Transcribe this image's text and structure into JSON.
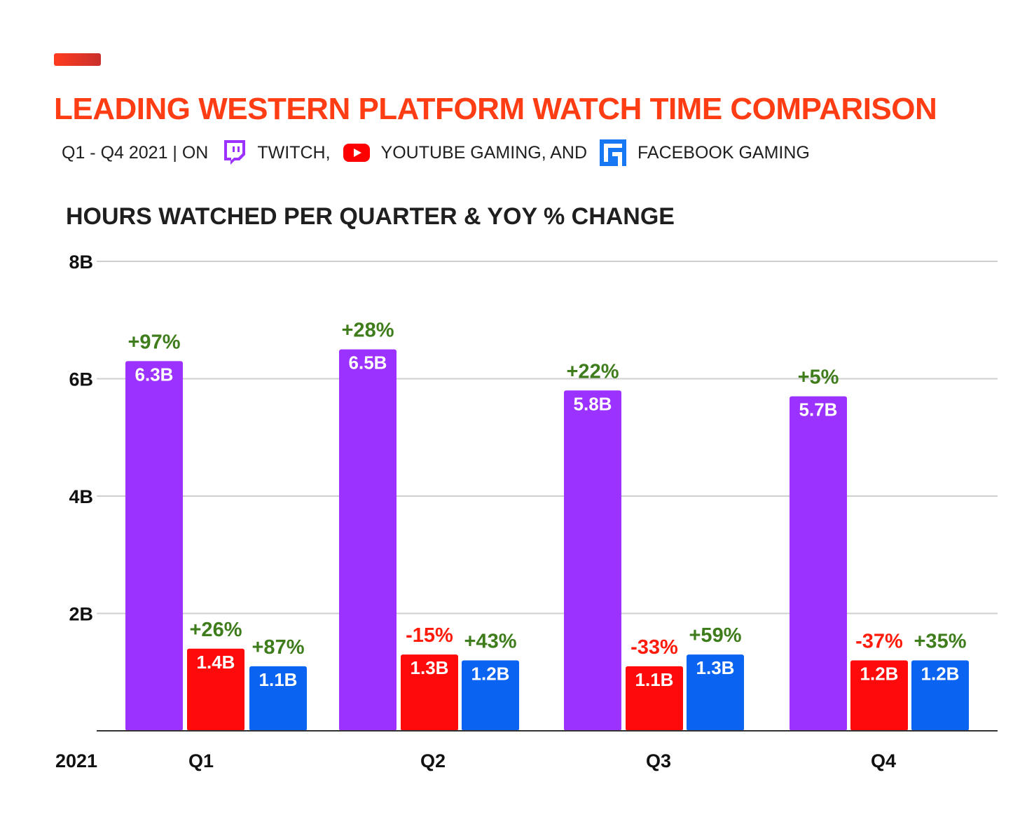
{
  "header": {
    "title": "LEADING WESTERN PLATFORM WATCH TIME COMPARISON",
    "subtitle_prefix": "Q1  - Q4 2021 | ON",
    "twitch_label": "TWITCH,",
    "youtube_label": "YOUTUBE GAMING, AND",
    "facebook_label": "FACEBOOK GAMING",
    "accent_color": "#ff3d14"
  },
  "chart_heading": "HOURS WATCHED PER QUARTER & YOY % CHANGE",
  "chart_data": {
    "type": "bar",
    "title": "HOURS WATCHED PER QUARTER & YOY % CHANGE",
    "xlabel": "2021",
    "ylabel": "",
    "ylim": [
      0,
      8
    ],
    "y_ticks": [
      {
        "value": 2,
        "label": "2B"
      },
      {
        "value": 4,
        "label": "4B"
      },
      {
        "value": 6,
        "label": "6B"
      },
      {
        "value": 8,
        "label": "8B"
      }
    ],
    "grid": true,
    "categories": [
      "Q1",
      "Q2",
      "Q3",
      "Q4"
    ],
    "series": [
      {
        "name": "Twitch",
        "color": "#9b32ff",
        "values": [
          6.3,
          6.5,
          5.8,
          5.7
        ],
        "value_labels": [
          "6.3B",
          "6.5B",
          "5.8B",
          "5.7B"
        ],
        "yoy": [
          "+97%",
          "+28%",
          "+22%",
          "+5%"
        ]
      },
      {
        "name": "YouTube Gaming",
        "color": "#ff0a0a",
        "values": [
          1.4,
          1.3,
          1.1,
          1.2
        ],
        "value_labels": [
          "1.4B",
          "1.3B",
          "1.1B",
          "1.2B"
        ],
        "yoy": [
          "+26%",
          "-15%",
          "-33%",
          "-37%"
        ]
      },
      {
        "name": "Facebook Gaming",
        "color": "#0b63f2",
        "values": [
          1.1,
          1.2,
          1.3,
          1.2
        ],
        "value_labels": [
          "1.1B",
          "1.2B",
          "1.3B",
          "1.2B"
        ],
        "yoy": [
          "+87%",
          "+43%",
          "+59%",
          "+35%"
        ]
      }
    ],
    "positive_color": "#3f7d1c",
    "negative_color": "#ff1a0a"
  }
}
